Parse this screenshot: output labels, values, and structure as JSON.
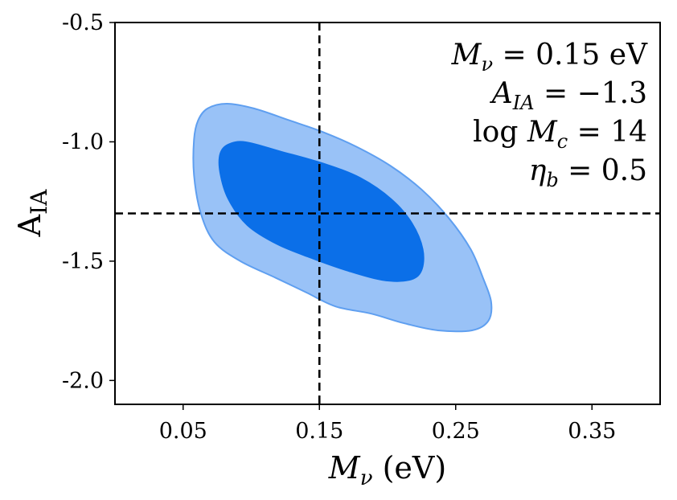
{
  "chart_data": {
    "type": "contour",
    "title": "",
    "xlabel": {
      "symbol": "M",
      "subscript": "ν",
      "units": " (eV)"
    },
    "ylabel": {
      "symbol": "A",
      "subscript": "IA"
    },
    "xlim": [
      0.0,
      0.4
    ],
    "ylim": [
      -2.1,
      -0.5
    ],
    "xticks": [
      0.05,
      0.15,
      0.25,
      0.35
    ],
    "xtick_labels": [
      "0.05",
      "0.15",
      "0.25",
      "0.35"
    ],
    "yticks": [
      -0.5,
      -1.0,
      -1.5,
      -2.0
    ],
    "ytick_labels": [
      "-0.5",
      "-1.0",
      "-1.5",
      "-2.0"
    ],
    "reference_lines": {
      "x": 0.15,
      "y": -1.3,
      "style": "dashed",
      "color": "#000000"
    },
    "contours": [
      {
        "level": "outer",
        "fill_color": "#99c2f7",
        "edge_color": "#5f9ff0",
        "points": [
          [
            0.058,
            -0.99
          ],
          [
            0.061,
            -0.91
          ],
          [
            0.068,
            -0.86
          ],
          [
            0.082,
            -0.84
          ],
          [
            0.102,
            -0.86
          ],
          [
            0.128,
            -0.91
          ],
          [
            0.153,
            -0.96
          ],
          [
            0.177,
            -1.02
          ],
          [
            0.202,
            -1.1
          ],
          [
            0.225,
            -1.2
          ],
          [
            0.245,
            -1.32
          ],
          [
            0.261,
            -1.45
          ],
          [
            0.27,
            -1.57
          ],
          [
            0.276,
            -1.67
          ],
          [
            0.274,
            -1.75
          ],
          [
            0.262,
            -1.79
          ],
          [
            0.237,
            -1.79
          ],
          [
            0.212,
            -1.76
          ],
          [
            0.188,
            -1.72
          ],
          [
            0.162,
            -1.69
          ],
          [
            0.14,
            -1.63
          ],
          [
            0.118,
            -1.57
          ],
          [
            0.092,
            -1.5
          ],
          [
            0.073,
            -1.42
          ],
          [
            0.063,
            -1.3
          ],
          [
            0.058,
            -1.14
          ]
        ]
      },
      {
        "level": "inner",
        "fill_color": "#0b6fe8",
        "edge_color": "#0b6fe8",
        "points": [
          [
            0.077,
            -1.05
          ],
          [
            0.083,
            -1.01
          ],
          [
            0.096,
            -1.0
          ],
          [
            0.122,
            -1.04
          ],
          [
            0.153,
            -1.09
          ],
          [
            0.18,
            -1.15
          ],
          [
            0.203,
            -1.24
          ],
          [
            0.218,
            -1.34
          ],
          [
            0.226,
            -1.45
          ],
          [
            0.225,
            -1.54
          ],
          [
            0.216,
            -1.58
          ],
          [
            0.196,
            -1.58
          ],
          [
            0.17,
            -1.54
          ],
          [
            0.145,
            -1.49
          ],
          [
            0.119,
            -1.43
          ],
          [
            0.097,
            -1.35
          ],
          [
            0.083,
            -1.24
          ],
          [
            0.077,
            -1.13
          ]
        ]
      }
    ],
    "annotations": [
      {
        "lhs_symbol": "M",
        "lhs_subscript": "ν",
        "rhs": " = 0.15 eV"
      },
      {
        "lhs_symbol": "A",
        "lhs_subscript": "IA",
        "rhs": " = −1.3"
      },
      {
        "lhs_prefix": "log ",
        "lhs_symbol": "M",
        "lhs_subscript": "c",
        "rhs": " = 14"
      },
      {
        "lhs_symbol": "η",
        "lhs_subscript": "b",
        "rhs": " = 0.5"
      }
    ],
    "legend": "none",
    "grid": false
  }
}
